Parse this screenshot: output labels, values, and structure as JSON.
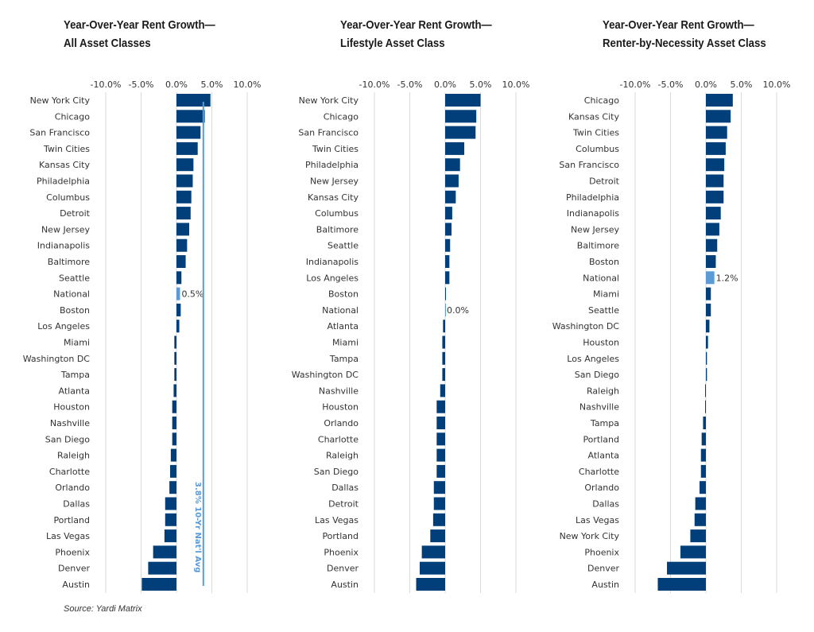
{
  "colors": {
    "bar": "#003f7a",
    "national": "#5b9bd5",
    "avg_line": "#5b9bd5",
    "grid": "#d9d9d9"
  },
  "source": "Source: Yardi Matrix",
  "chart_data": [
    {
      "type": "bar",
      "orientation": "horizontal",
      "title_line1": "Year-Over-Year Rent Growth—",
      "title_line2": "All Asset Classes",
      "xlim": [
        -10,
        10
      ],
      "ticks": [
        "-10.0%",
        "-5.0%",
        "0.0%",
        "5.0%",
        "10.0%"
      ],
      "tick_values": [
        -10,
        -5,
        0,
        5,
        10
      ],
      "grid": true,
      "highlight": "National",
      "data_label": "0.5%",
      "reference_line": {
        "value": 3.8,
        "label": "3.8% 10-Yr Nat'l Avg"
      },
      "categories": [
        "New York City",
        "Chicago",
        "San Francisco",
        "Twin Cities",
        "Kansas City",
        "Philadelphia",
        "Columbus",
        "Detroit",
        "New Jersey",
        "Indianapolis",
        "Baltimore",
        "Seattle",
        "National",
        "Boston",
        "Los Angeles",
        "Miami",
        "Washington DC",
        "Tampa",
        "Atlanta",
        "Houston",
        "Nashville",
        "San Diego",
        "Raleigh",
        "Charlotte",
        "Orlando",
        "Dallas",
        "Portland",
        "Las Vegas",
        "Phoenix",
        "Denver",
        "Austin"
      ],
      "values": [
        4.8,
        4.0,
        3.4,
        3.0,
        2.4,
        2.3,
        2.1,
        2.0,
        1.8,
        1.5,
        1.3,
        0.7,
        0.5,
        0.6,
        0.4,
        -0.3,
        -0.3,
        -0.3,
        -0.4,
        -0.6,
        -0.6,
        -0.6,
        -0.8,
        -0.9,
        -1.0,
        -1.6,
        -1.6,
        -1.7,
        -3.3,
        -4.0,
        -4.9
      ]
    },
    {
      "type": "bar",
      "orientation": "horizontal",
      "title_line1": "Year-Over-Year Rent Growth—",
      "title_line2": "Lifestyle Asset Class",
      "xlim": [
        -10,
        10
      ],
      "ticks": [
        "-10.0%",
        "-5.0%",
        "0.0%",
        "5.0%",
        "10.0%"
      ],
      "tick_values": [
        -10,
        -5,
        0,
        5,
        10
      ],
      "grid": true,
      "highlight": "National",
      "data_label": "0.0%",
      "categories": [
        "New York City",
        "Chicago",
        "San Francisco",
        "Twin Cities",
        "Philadelphia",
        "New Jersey",
        "Kansas City",
        "Columbus",
        "Baltimore",
        "Seattle",
        "Indianapolis",
        "Los Angeles",
        "Boston",
        "National",
        "Atlanta",
        "Miami",
        "Tampa",
        "Washington DC",
        "Nashville",
        "Houston",
        "Orlando",
        "Charlotte",
        "Raleigh",
        "San Diego",
        "Dallas",
        "Detroit",
        "Las Vegas",
        "Portland",
        "Phoenix",
        "Denver",
        "Austin"
      ],
      "values": [
        5.0,
        4.4,
        4.3,
        2.7,
        2.1,
        1.9,
        1.5,
        1.0,
        0.9,
        0.7,
        0.6,
        0.6,
        0.1,
        0.0,
        -0.3,
        -0.4,
        -0.4,
        -0.4,
        -0.7,
        -1.2,
        -1.2,
        -1.2,
        -1.2,
        -1.2,
        -1.6,
        -1.6,
        -1.7,
        -2.1,
        -3.3,
        -3.6,
        -4.1
      ]
    },
    {
      "type": "bar",
      "orientation": "horizontal",
      "title_line1": "Year-Over-Year Rent Growth—",
      "title_line2": "Renter-by-Necessity Asset Class",
      "xlim": [
        -10,
        10
      ],
      "ticks": [
        "-10.0%",
        "-5.0%",
        "0.0%",
        "5.0%",
        "10.0%"
      ],
      "tick_values": [
        -10,
        -5,
        0,
        5,
        10
      ],
      "grid": true,
      "highlight": "National",
      "data_label": "1.2%",
      "categories": [
        "Chicago",
        "Kansas City",
        "Twin Cities",
        "Columbus",
        "San Francisco",
        "Detroit",
        "Philadelphia",
        "Indianapolis",
        "New Jersey",
        "Baltimore",
        "Boston",
        "National",
        "Miami",
        "Seattle",
        "Washington DC",
        "Houston",
        "Los Angeles",
        "San Diego",
        "Raleigh",
        "Nashville",
        "Tampa",
        "Portland",
        "Atlanta",
        "Charlotte",
        "Orlando",
        "Dallas",
        "Las Vegas",
        "New York City",
        "Phoenix",
        "Denver",
        "Austin"
      ],
      "values": [
        3.8,
        3.5,
        3.0,
        2.8,
        2.6,
        2.5,
        2.5,
        2.1,
        1.9,
        1.6,
        1.4,
        1.2,
        0.7,
        0.7,
        0.5,
        0.3,
        0.15,
        0.15,
        -0.1,
        -0.1,
        -0.4,
        -0.6,
        -0.7,
        -0.7,
        -0.9,
        -1.5,
        -1.6,
        -2.2,
        -3.6,
        -5.5,
        -6.8
      ]
    }
  ]
}
